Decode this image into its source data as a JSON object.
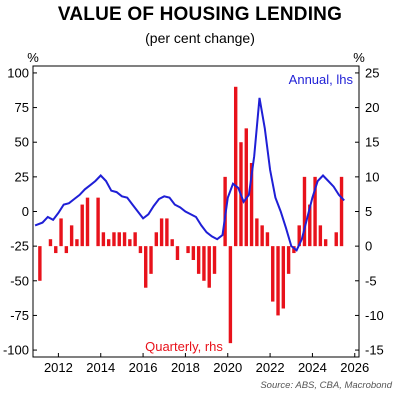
{
  "chart_data": {
    "type": "bar+line",
    "title": "VALUE OF HOUSING LENDING",
    "subtitle": "(per cent change)",
    "left_unit": "%",
    "right_unit": "%",
    "source": "Source: ABS, CBA, Macrobond",
    "left_axis": {
      "ylim": [
        -105,
        105
      ],
      "ticks": [
        100,
        75,
        50,
        25,
        0,
        -25,
        -50,
        -75,
        -100
      ]
    },
    "right_axis": {
      "ylim": [
        -16,
        26
      ],
      "ticks": [
        25,
        20,
        15,
        10,
        5,
        0,
        -5,
        -10,
        -15
      ]
    },
    "x_axis": {
      "xlim": [
        2010.8,
        2026.2
      ],
      "ticks": [
        2012,
        2014,
        2016,
        2018,
        2020,
        2022,
        2024,
        2026
      ]
    },
    "grid": false,
    "colors": {
      "annual": "#1f1fd6",
      "quarterly": "#e8121b"
    },
    "series": [
      {
        "name": "Quarterly, rhs",
        "type": "bar",
        "axis": "right",
        "x": [
          2011.125,
          2011.375,
          2011.625,
          2011.875,
          2012.125,
          2012.375,
          2012.625,
          2012.875,
          2013.125,
          2013.375,
          2013.625,
          2013.875,
          2014.125,
          2014.375,
          2014.625,
          2014.875,
          2015.125,
          2015.375,
          2015.625,
          2015.875,
          2016.125,
          2016.375,
          2016.625,
          2016.875,
          2017.125,
          2017.375,
          2017.625,
          2017.875,
          2018.125,
          2018.375,
          2018.625,
          2018.875,
          2019.125,
          2019.375,
          2019.625,
          2019.875,
          2020.125,
          2020.375,
          2020.625,
          2020.875,
          2021.125,
          2021.375,
          2021.625,
          2021.875,
          2022.125,
          2022.375,
          2022.625,
          2022.875,
          2023.125,
          2023.375,
          2023.625,
          2023.875,
          2024.125,
          2024.375,
          2024.625,
          2024.875,
          2025.125,
          2025.375
        ],
        "values": [
          -5,
          0,
          1,
          -1,
          4,
          -1,
          3,
          1,
          6,
          7,
          0,
          7,
          2,
          1,
          2,
          2,
          2,
          1,
          2,
          -1,
          -6,
          -4,
          2,
          4,
          4,
          1,
          -2,
          0,
          -1,
          -2,
          -4,
          -5,
          -6,
          -4,
          0,
          10,
          -14,
          23,
          15,
          17,
          12,
          4,
          3,
          2,
          -8,
          -10,
          -9,
          -4,
          -1,
          3,
          10,
          6,
          10,
          3,
          1,
          0,
          2,
          10
        ]
      },
      {
        "name": "Annual, lhs",
        "type": "line",
        "axis": "left",
        "x": [
          2010.9,
          2011.25,
          2011.5,
          2011.75,
          2012.0,
          2012.25,
          2012.5,
          2012.75,
          2013.0,
          2013.25,
          2013.5,
          2013.75,
          2014.0,
          2014.25,
          2014.5,
          2014.75,
          2015.0,
          2015.25,
          2015.5,
          2015.75,
          2016.0,
          2016.25,
          2016.5,
          2016.75,
          2017.0,
          2017.25,
          2017.5,
          2017.75,
          2018.0,
          2018.25,
          2018.5,
          2018.75,
          2019.0,
          2019.25,
          2019.5,
          2019.75,
          2020.0,
          2020.25,
          2020.5,
          2020.75,
          2021.0,
          2021.25,
          2021.5,
          2021.75,
          2022.0,
          2022.25,
          2022.5,
          2022.75,
          2023.0,
          2023.25,
          2023.5,
          2023.75,
          2024.0,
          2024.25,
          2024.5,
          2024.75,
          2025.0,
          2025.25,
          2025.5
        ],
        "values": [
          -10,
          -8,
          -4,
          -6,
          -1,
          5,
          6,
          9,
          12,
          16,
          19,
          22,
          26,
          22,
          15,
          14,
          11,
          10,
          5,
          0,
          -5,
          -2,
          4,
          9,
          11,
          10,
          5,
          3,
          0,
          -2,
          -4,
          -10,
          -15,
          -18,
          -20,
          -17,
          10,
          20,
          17,
          7,
          12,
          40,
          82,
          60,
          30,
          10,
          0,
          -12,
          -25,
          -28,
          -20,
          -5,
          10,
          22,
          26,
          22,
          18,
          12,
          8
        ]
      }
    ],
    "annotations": [
      "Annual, lhs",
      "Quarterly, rhs"
    ]
  }
}
